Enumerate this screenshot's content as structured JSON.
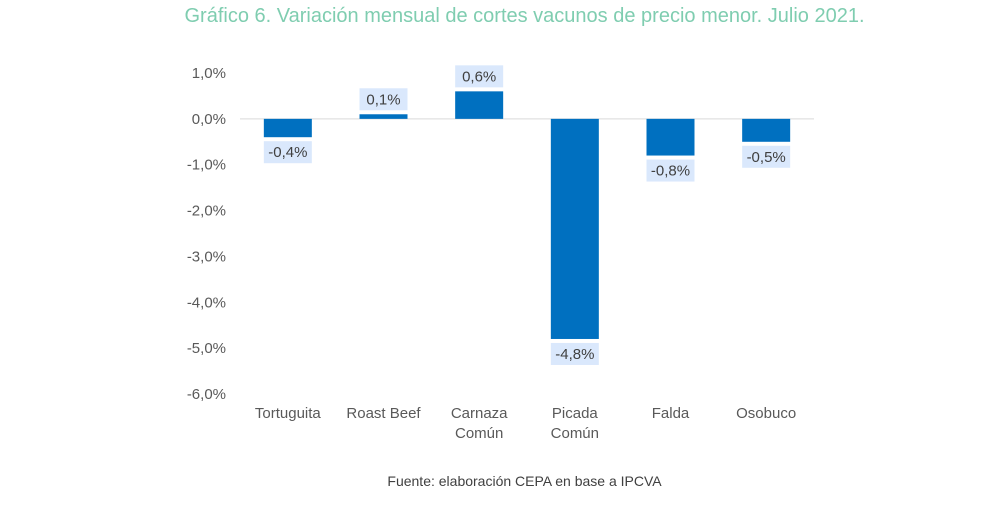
{
  "chart_data": {
    "type": "bar",
    "title": "Gráfico 6. Variación mensual de cortes vacunos de precio menor. Julio 2021.",
    "xlabel": "",
    "ylabel": "",
    "categories": [
      [
        "Tortuguita"
      ],
      [
        "Roast Beef"
      ],
      [
        "Carnaza",
        "Común"
      ],
      [
        "Picada",
        "Común"
      ],
      [
        "Falda"
      ],
      [
        "Osobuco"
      ]
    ],
    "values": [
      -0.4,
      0.1,
      0.6,
      -4.8,
      -0.8,
      -0.5
    ],
    "data_labels": [
      "-0,4%",
      "0,1%",
      "0,6%",
      "-4,8%",
      "-0,8%",
      "-0,5%"
    ],
    "ylim": [
      -6.0,
      1.0
    ],
    "yticks": [
      1.0,
      0.0,
      -1.0,
      -2.0,
      -3.0,
      -4.0,
      -5.0,
      -6.0
    ],
    "ytick_labels": [
      "1,0%",
      "0,0%",
      "-1,0%",
      "-2,0%",
      "-3,0%",
      "-4,0%",
      "-5,0%",
      "-6,0%"
    ],
    "grid": false,
    "legend": "none",
    "source": "Fuente: elaboración CEPA en base a IPCVA",
    "colors": {
      "bar": "#0070c0",
      "label_bg": "#dae8fc",
      "title": "#7fcdb0",
      "zero_line": "#d9d9d9"
    }
  }
}
